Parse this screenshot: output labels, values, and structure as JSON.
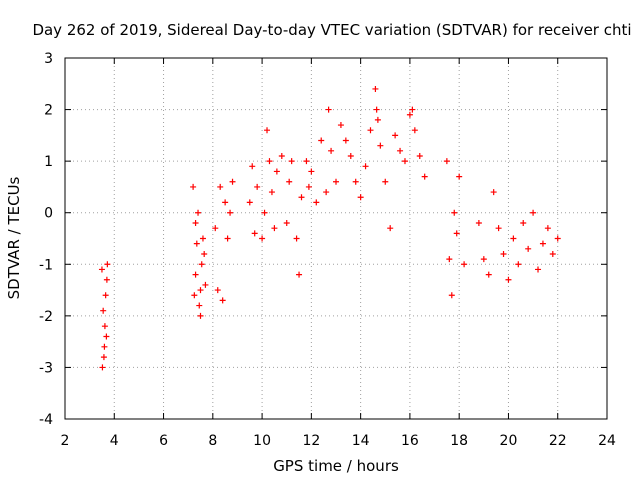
{
  "chart_data": {
    "type": "scatter",
    "title": "Day 262 of 2019, Sidereal Day-to-day VTEC variation (SDTVAR) for receiver chti",
    "xlabel": "GPS time / hours",
    "ylabel": "SDTVAR / TECUs",
    "xlim": [
      2,
      24
    ],
    "ylim": [
      -4,
      3
    ],
    "xticks": [
      "2",
      "4",
      "6",
      "8",
      "10",
      "12",
      "14",
      "16",
      "18",
      "20",
      "22",
      "24"
    ],
    "yticks": [
      "-4",
      "-3",
      "-2",
      "-1",
      "0",
      "1",
      "2",
      "3"
    ],
    "grid": true,
    "marker": "+",
    "color": "#ff0000",
    "series": [
      {
        "name": "SDTVAR",
        "x": [
          3.5,
          3.55,
          3.6,
          3.62,
          3.65,
          3.68,
          3.7,
          3.52,
          3.58,
          3.72,
          7.2,
          7.25,
          7.3,
          7.35,
          7.4,
          7.45,
          7.5,
          7.55,
          7.6,
          7.65,
          7.7,
          7.3,
          7.5,
          8.1,
          8.2,
          8.3,
          8.4,
          8.5,
          8.6,
          8.7,
          8.8,
          9.5,
          9.6,
          9.7,
          9.8,
          10.0,
          10.1,
          10.2,
          10.3,
          10.4,
          10.5,
          10.6,
          10.8,
          11.0,
          11.1,
          11.2,
          11.4,
          11.5,
          11.6,
          11.8,
          11.9,
          12.0,
          12.2,
          12.4,
          12.6,
          12.7,
          12.8,
          13.0,
          13.2,
          13.4,
          13.6,
          13.8,
          14.0,
          14.2,
          14.4,
          14.6,
          14.65,
          14.7,
          14.8,
          15.0,
          15.2,
          15.4,
          15.6,
          15.8,
          16.0,
          16.1,
          16.2,
          16.4,
          16.6,
          17.5,
          17.6,
          17.7,
          17.8,
          17.9,
          18.0,
          18.2,
          18.8,
          19.0,
          19.2,
          19.4,
          19.6,
          19.8,
          20.0,
          20.2,
          20.4,
          20.6,
          20.8,
          21.0,
          21.2,
          21.4,
          21.6,
          21.8,
          22.0
        ],
        "y": [
          -1.1,
          -1.9,
          -2.6,
          -2.2,
          -1.6,
          -2.4,
          -1.3,
          -3.0,
          -2.8,
          -1.0,
          0.5,
          -1.6,
          -1.2,
          -0.6,
          0.0,
          -1.8,
          -2.0,
          -1.0,
          -0.5,
          -0.8,
          -1.4,
          -0.2,
          -1.5,
          -0.3,
          -1.5,
          0.5,
          -1.7,
          0.2,
          -0.5,
          0.0,
          0.6,
          0.2,
          0.9,
          -0.4,
          0.5,
          -0.5,
          0.0,
          1.6,
          1.0,
          0.4,
          -0.3,
          0.8,
          1.1,
          -0.2,
          0.6,
          1.0,
          -0.5,
          -1.2,
          0.3,
          1.0,
          0.5,
          0.8,
          0.2,
          1.4,
          0.4,
          2.0,
          1.2,
          0.6,
          1.7,
          1.4,
          1.1,
          0.6,
          0.3,
          0.9,
          1.6,
          2.4,
          2.0,
          1.8,
          1.3,
          0.6,
          -0.3,
          1.5,
          1.2,
          1.0,
          1.9,
          2.0,
          1.6,
          1.1,
          0.7,
          1.0,
          -0.9,
          -1.6,
          0.0,
          -0.4,
          0.7,
          -1.0,
          -0.2,
          -0.9,
          -1.2,
          0.4,
          -0.3,
          -0.8,
          -1.3,
          -0.5,
          -1.0,
          -0.2,
          -0.7,
          0.0,
          -1.1,
          -0.6,
          -0.3,
          -0.8,
          -0.5
        ]
      }
    ]
  }
}
